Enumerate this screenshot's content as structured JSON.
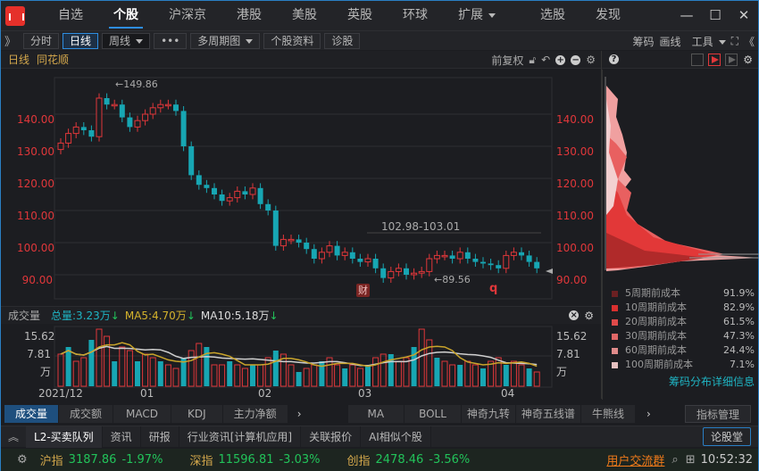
{
  "app": {
    "logo": "tonghuashun-logo"
  },
  "nav": {
    "items": [
      {
        "label": "自选"
      },
      {
        "label": "个股",
        "active": true
      },
      {
        "label": "沪深京"
      },
      {
        "label": "港股"
      },
      {
        "label": "美股"
      },
      {
        "label": "英股"
      },
      {
        "label": "环球"
      },
      {
        "label": "扩展",
        "dropdown": true
      },
      {
        "label": "选股"
      },
      {
        "label": "发现"
      }
    ],
    "window": {
      "minimize": "—",
      "maximize": "☐",
      "close": "✕"
    }
  },
  "toolbar": {
    "expand": "》",
    "buttons": [
      {
        "label": "分时"
      },
      {
        "label": "日线",
        "active": true
      },
      {
        "label": "周线",
        "dropdown": true
      },
      {
        "label": "•••"
      },
      {
        "label": "多周期图",
        "dropdown": true
      },
      {
        "label": "个股资料"
      },
      {
        "label": "诊股"
      }
    ],
    "right": {
      "chips": "筹码",
      "draw": "画线",
      "tools": "工具",
      "fullscreen": "⛶",
      "collapse": "《"
    }
  },
  "chart_header": {
    "period": "日线",
    "stock": "同花顺",
    "adjust": "前复权"
  },
  "main_chart": {
    "y_ticks": [
      "140.00",
      "130.00",
      "120.00",
      "110.00",
      "100.00",
      "90.00"
    ],
    "high_label": "149.86",
    "low_label": "89.56",
    "range_label": "102.98-103.01",
    "badge_cai": "财",
    "badge_q": "q"
  },
  "volume": {
    "title": "成交量",
    "total": "总量:3.23万",
    "ma5": "MA5:4.70万",
    "ma10": "MA10:5.18万",
    "y_ticks": [
      "15.62",
      "7.81",
      "万"
    ],
    "x_ticks": [
      "2021/12",
      "01",
      "02",
      "03",
      "04"
    ]
  },
  "chip_legend": [
    {
      "label": "5周期前成本",
      "value": "91.9%",
      "color": "#6b2022"
    },
    {
      "label": "10周期前成本",
      "value": "82.9%",
      "color": "#d9302f"
    },
    {
      "label": "20周期前成本",
      "value": "61.5%",
      "color": "#e04a4a"
    },
    {
      "label": "30周期前成本",
      "value": "47.3%",
      "color": "#e06767"
    },
    {
      "label": "60周期前成本",
      "value": "24.4%",
      "color": "#e08b8b"
    },
    {
      "label": "100周期前成本",
      "value": "7.1%",
      "color": "#e5c0c0"
    }
  ],
  "chip_link": "筹码分布详细信息",
  "indicators": {
    "left": [
      {
        "label": "成交量",
        "active": true
      },
      {
        "label": "成交额"
      },
      {
        "label": "MACD"
      },
      {
        "label": "KDJ"
      },
      {
        "label": "主力净额"
      }
    ],
    "right": [
      {
        "label": "MA"
      },
      {
        "label": "BOLL"
      },
      {
        "label": "神奇九转"
      },
      {
        "label": "神奇五线谱"
      },
      {
        "label": "牛熊线"
      }
    ],
    "manage": "指标管理"
  },
  "tabs": [
    {
      "label": "L2-买卖队列"
    },
    {
      "label": "资讯"
    },
    {
      "label": "研报"
    },
    {
      "label": "行业资讯[计算机应用]"
    },
    {
      "label": "关联报价"
    },
    {
      "label": "AI相似个股"
    }
  ],
  "forum": "论股堂",
  "status": {
    "indices": [
      {
        "name": "沪指",
        "value": "3187.86",
        "change": "-1.97%"
      },
      {
        "name": "深指",
        "value": "11596.81",
        "change": "-3.03%"
      },
      {
        "name": "创指",
        "value": "2478.46",
        "change": "-3.56%"
      }
    ],
    "group_link": "用户交流群",
    "time": "10:52:32"
  }
}
